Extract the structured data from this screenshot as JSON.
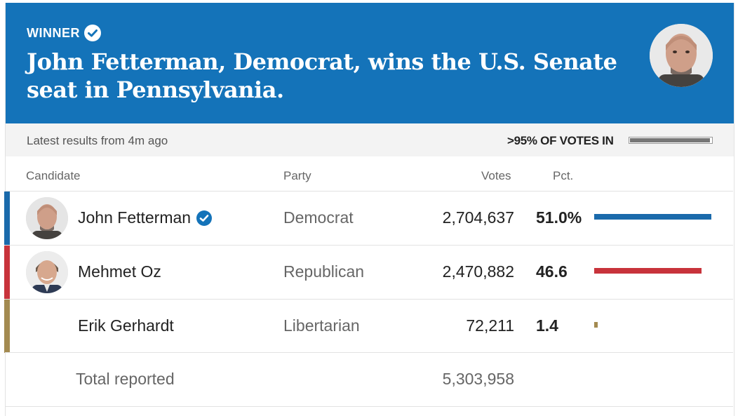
{
  "banner": {
    "winner_label": "WINNER",
    "headline": "John Fetterman, Democrat, wins the U.S. Senate seat in Pennsylvania.",
    "background_color": "#1473b9"
  },
  "meta": {
    "latest_results": "Latest results from 4m ago",
    "votes_in": ">95% OF VOTES IN",
    "votes_in_fraction": 0.98
  },
  "columns": {
    "candidate": "Candidate",
    "party": "Party",
    "votes": "Votes",
    "pct": "Pct."
  },
  "candidates": [
    {
      "name": "John Fetterman",
      "party": "Democrat",
      "votes": "2,704,637",
      "pct": "51.0%",
      "pct_value": 51.0,
      "winner": true,
      "color": "#1a6aab",
      "has_photo": true
    },
    {
      "name": "Mehmet Oz",
      "party": "Republican",
      "votes": "2,470,882",
      "pct": "46.6",
      "pct_value": 46.6,
      "winner": false,
      "color": "#c8333b",
      "has_photo": true
    },
    {
      "name": "Erik Gerhardt",
      "party": "Libertarian",
      "votes": "72,211",
      "pct": "1.4",
      "pct_value": 1.4,
      "winner": false,
      "color": "#a38a50",
      "has_photo": false
    }
  ],
  "total": {
    "label": "Total reported",
    "votes": "5,303,958"
  },
  "icons": {
    "winner_check": "check-circle-icon",
    "candidate_check": "check-circle-icon"
  }
}
